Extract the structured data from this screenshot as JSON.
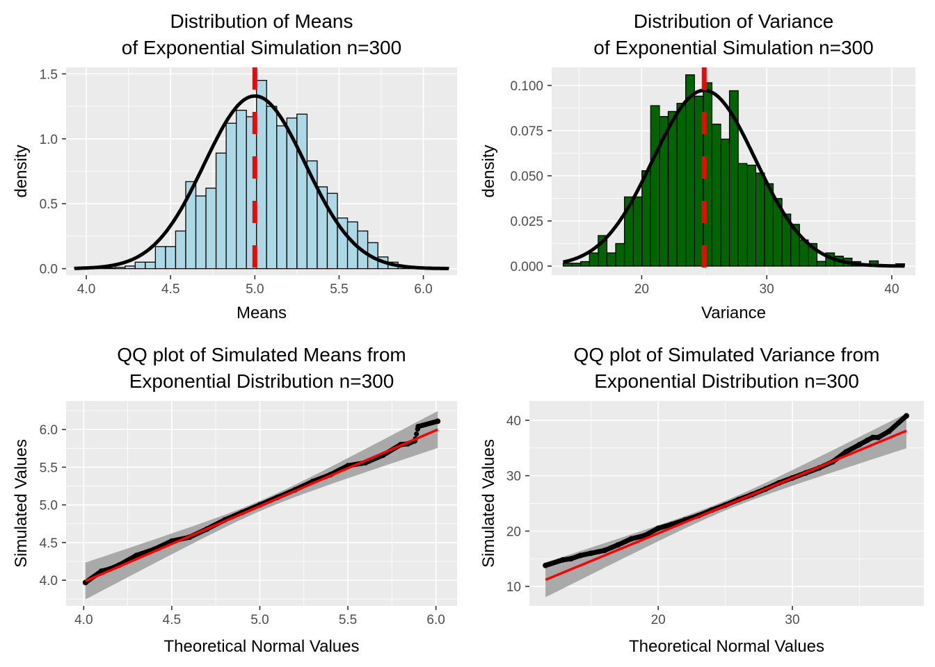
{
  "chart_data": [
    {
      "type": "bar",
      "subtype": "histogram",
      "title": [
        "Distribution of Means",
        "of Exponential Simulation n=300"
      ],
      "xlabel": "Means",
      "ylabel": "density",
      "xlim": [
        3.88,
        6.2
      ],
      "ylim": [
        -0.05,
        1.55
      ],
      "xticks": [
        4.0,
        4.5,
        5.0,
        5.5,
        6.0
      ],
      "xtick_labels": [
        "4.0",
        "4.5",
        "5.0",
        "5.5",
        "6.0"
      ],
      "yticks": [
        0.0,
        0.5,
        1.0,
        1.5
      ],
      "ytick_labels": [
        "0.0",
        "0.5",
        "1.0",
        "1.5"
      ],
      "grid": true,
      "bin_start": 3.93,
      "bin_width": 0.06,
      "values": [
        0.01,
        0.0,
        0.0,
        0.0,
        0.01,
        0.02,
        0.05,
        0.05,
        0.17,
        0.17,
        0.29,
        0.67,
        0.56,
        0.62,
        0.89,
        1.12,
        1.22,
        1.17,
        1.45,
        1.25,
        1.1,
        1.16,
        1.19,
        0.83,
        0.63,
        0.58,
        0.39,
        0.36,
        0.29,
        0.2,
        0.09,
        0.05,
        0.02,
        0.01,
        0.0,
        0.01,
        0.01
      ],
      "fill": "#add8e6",
      "normal_curve": {
        "mean": 5.0,
        "sd": 0.3,
        "color": "#000000"
      },
      "vline": {
        "x": 5.0,
        "color": "#ff0000",
        "style": "dashed"
      }
    },
    {
      "type": "bar",
      "subtype": "histogram",
      "title": [
        "Distribution of Variance",
        "of Exponential Simulation n=300"
      ],
      "xlabel": "Variance",
      "ylabel": "density",
      "xlim": [
        12.8,
        41.9
      ],
      "ylim": [
        -0.005,
        0.11
      ],
      "xticks": [
        20,
        30,
        40
      ],
      "xtick_labels": [
        "20",
        "30",
        "40"
      ],
      "yticks": [
        0.0,
        0.025,
        0.05,
        0.075,
        0.1
      ],
      "ytick_labels": [
        "0.000",
        "0.025",
        "0.050",
        "0.075",
        "0.100"
      ],
      "grid": true,
      "bin_start": 13.72,
      "bin_width": 0.7,
      "values": [
        0.0016,
        0.0016,
        0.0025,
        0.0073,
        0.0169,
        0.0073,
        0.0125,
        0.0383,
        0.0383,
        0.0528,
        0.0888,
        0.0828,
        0.0856,
        0.0901,
        0.1059,
        0.0941,
        0.1015,
        0.0786,
        0.0703,
        0.0971,
        0.0568,
        0.0559,
        0.0515,
        0.0456,
        0.0374,
        0.0288,
        0.0231,
        0.0145,
        0.0125,
        0.0026,
        0.0073,
        0.0055,
        0.0044,
        0.0025,
        0.0013,
        0.0029,
        0.0007,
        0.0007,
        0.0013
      ],
      "fill": "#006400",
      "normal_curve": {
        "mean": 25.0,
        "sd": 4.1,
        "color": "#000000"
      },
      "vline": {
        "x": 25.0,
        "color": "#ff0000",
        "style": "dashed"
      }
    },
    {
      "type": "scatter",
      "subtype": "qq",
      "title": [
        "QQ plot of Simulated Means from",
        "Exponential Distribution n=300"
      ],
      "xlabel": "Theoretical Normal Values",
      "ylabel": "Simulated Values",
      "xlim": [
        3.9,
        6.12
      ],
      "ylim": [
        3.66,
        6.38
      ],
      "xticks": [
        4.0,
        4.5,
        5.0,
        5.5,
        6.0
      ],
      "xtick_labels": [
        "4.0",
        "4.5",
        "5.0",
        "5.5",
        "6.0"
      ],
      "yticks": [
        4.0,
        4.5,
        5.0,
        5.5,
        6.0
      ],
      "ytick_labels": [
        "4.0",
        "4.5",
        "5.0",
        "5.5",
        "6.0"
      ],
      "grid": true,
      "n_points": 300,
      "x_range": [
        4.01,
        6.01
      ],
      "points_sample": [
        [
          4.01,
          3.97
        ],
        [
          4.1,
          4.12
        ],
        [
          4.15,
          4.15
        ],
        [
          4.2,
          4.2
        ],
        [
          4.3,
          4.33
        ],
        [
          4.4,
          4.41
        ],
        [
          4.5,
          4.52
        ],
        [
          4.6,
          4.57
        ],
        [
          4.7,
          4.68
        ],
        [
          4.8,
          4.8
        ],
        [
          4.9,
          4.9
        ],
        [
          5.0,
          5.0
        ],
        [
          5.1,
          5.1
        ],
        [
          5.2,
          5.2
        ],
        [
          5.3,
          5.31
        ],
        [
          5.4,
          5.4
        ],
        [
          5.5,
          5.52
        ],
        [
          5.6,
          5.56
        ],
        [
          5.7,
          5.66
        ],
        [
          5.8,
          5.8
        ],
        [
          5.84,
          5.81
        ],
        [
          5.88,
          5.85
        ],
        [
          5.9,
          6.04
        ],
        [
          6.01,
          6.11
        ]
      ],
      "fit_line": {
        "x0": 4.01,
        "y0": 3.99,
        "x1": 6.01,
        "y1": 6.0,
        "color": "#ff0000"
      },
      "ci_band": {
        "color": "#999999",
        "low_ends": [
          3.75,
          5.77
        ],
        "high_ends": [
          4.24,
          6.24
        ]
      }
    },
    {
      "type": "scatter",
      "subtype": "qq",
      "title": [
        "QQ plot of Simulated Variance from",
        "Exponential Distribution n=300"
      ],
      "xlabel": "Theoretical Normal Values",
      "ylabel": "Simulated Values",
      "xlim": [
        10.4,
        39.8
      ],
      "ylim": [
        6.5,
        43.5
      ],
      "xticks": [
        20,
        30
      ],
      "xtick_labels": [
        "20",
        "30"
      ],
      "yticks": [
        10,
        20,
        30,
        40
      ],
      "ytick_labels": [
        "10",
        "20",
        "30",
        "40"
      ],
      "grid": true,
      "n_points": 300,
      "x_range": [
        11.6,
        38.5
      ],
      "points_sample": [
        [
          11.6,
          13.8
        ],
        [
          12.9,
          14.8
        ],
        [
          13.5,
          15.0
        ],
        [
          14.2,
          15.6
        ],
        [
          15.0,
          16.0
        ],
        [
          16.0,
          16.5
        ],
        [
          17.0,
          17.5
        ],
        [
          18.0,
          18.6
        ],
        [
          19.0,
          19.2
        ],
        [
          20.0,
          20.5
        ],
        [
          21.0,
          21.2
        ],
        [
          22.0,
          22.0
        ],
        [
          23.0,
          22.8
        ],
        [
          24.0,
          23.8
        ],
        [
          25.0,
          24.7
        ],
        [
          26.0,
          25.7
        ],
        [
          27.0,
          26.6
        ],
        [
          28.0,
          27.6
        ],
        [
          29.0,
          28.7
        ],
        [
          30.0,
          29.6
        ],
        [
          31.0,
          30.5
        ],
        [
          32.0,
          31.4
        ],
        [
          33.0,
          32.5
        ],
        [
          34.0,
          34.3
        ],
        [
          35.0,
          35.6
        ],
        [
          35.6,
          36.4
        ],
        [
          36.0,
          36.9
        ],
        [
          36.4,
          36.9
        ],
        [
          37.2,
          38.0
        ],
        [
          38.5,
          40.8
        ]
      ],
      "fit_line": {
        "x0": 11.6,
        "y0": 11.2,
        "x1": 38.5,
        "y1": 38.1,
        "color": "#ff0000"
      },
      "ci_band": {
        "color": "#999999",
        "low_ends": [
          8.0,
          35.2
        ],
        "high_ends": [
          14.3,
          41.2
        ]
      }
    }
  ]
}
